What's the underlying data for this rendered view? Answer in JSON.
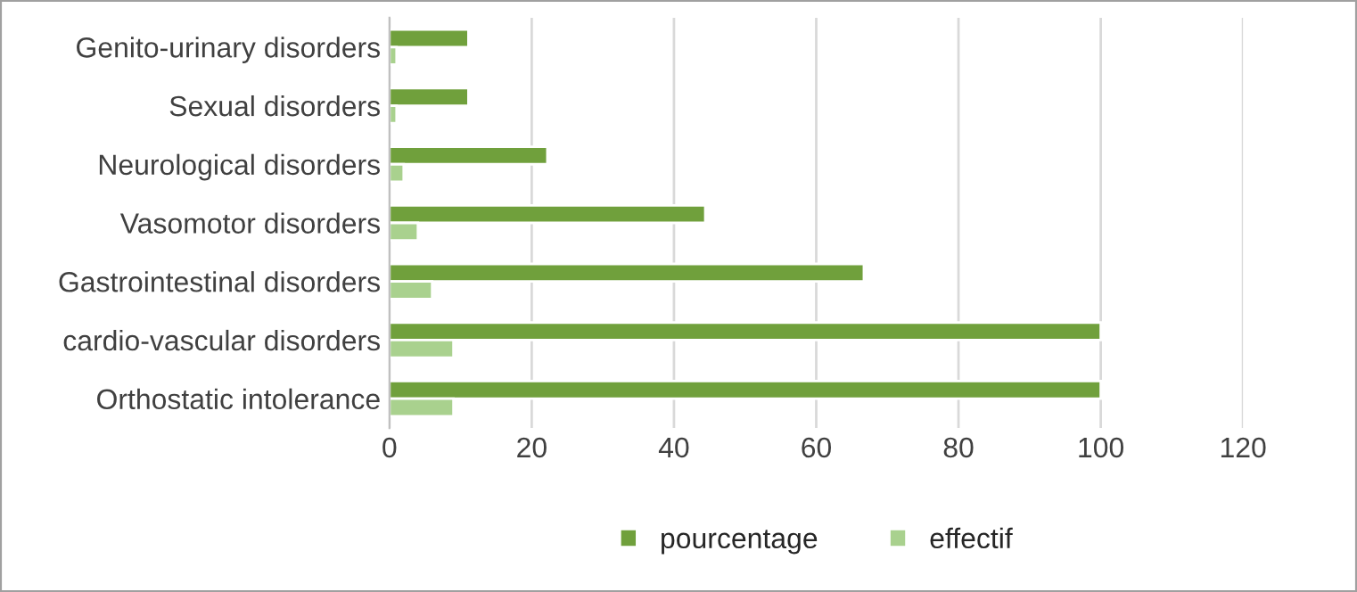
{
  "chart_data": {
    "type": "bar",
    "orientation": "horizontal",
    "categories": [
      "Genito-urinary disorders",
      "Sexual disorders",
      "Neurological disorders",
      "Vasomotor disorders",
      "Gastrointestinal disorders",
      "cardio-vascular disorders",
      "Orthostatic intolerance"
    ],
    "series": [
      {
        "name": "pourcentage",
        "color": "#70a03c",
        "values": [
          11.1,
          11.1,
          22.2,
          44.4,
          66.7,
          100,
          100
        ]
      },
      {
        "name": "effectif",
        "color": "#a9d18e",
        "values": [
          1,
          1,
          2,
          4,
          6,
          9,
          9
        ]
      }
    ],
    "xlim": [
      0,
      120
    ],
    "xticks": [
      0,
      20,
      40,
      60,
      80,
      100,
      120
    ],
    "grid": "x",
    "legend": "bottom"
  }
}
